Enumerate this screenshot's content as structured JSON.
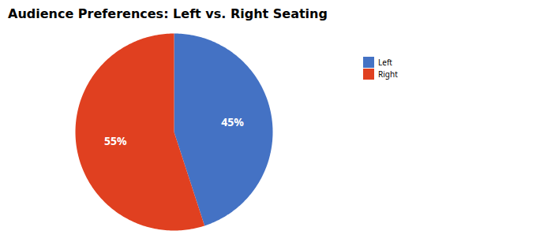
{
  "chart_data": {
    "type": "pie",
    "title": "Audience Preferences: Left vs. Right Seating",
    "categories": [
      "Left",
      "Right"
    ],
    "values": [
      45,
      55
    ],
    "value_labels": [
      "45%",
      "55%"
    ],
    "colors": [
      "#4472C4",
      "#E04020"
    ],
    "data_labels": true,
    "legend": "right"
  }
}
